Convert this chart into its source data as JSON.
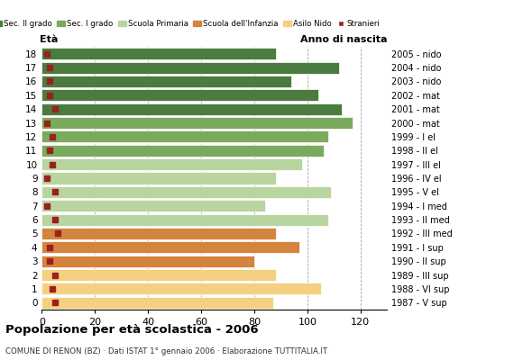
{
  "ages": [
    18,
    17,
    16,
    15,
    14,
    13,
    12,
    11,
    10,
    9,
    8,
    7,
    6,
    5,
    4,
    3,
    2,
    1,
    0
  ],
  "bar_values": [
    88,
    112,
    94,
    104,
    113,
    117,
    108,
    106,
    98,
    88,
    109,
    84,
    108,
    88,
    97,
    80,
    88,
    105,
    87
  ],
  "stranieri_values": [
    2,
    3,
    3,
    3,
    5,
    2,
    4,
    3,
    4,
    2,
    5,
    2,
    5,
    6,
    3,
    3,
    5,
    4,
    5
  ],
  "anno_nascita": [
    "1987 - V sup",
    "1988 - VI sup",
    "1989 - III sup",
    "1990 - II sup",
    "1991 - I sup",
    "1992 - III med",
    "1993 - II med",
    "1994 - I med",
    "1995 - V el",
    "1996 - IV el",
    "1997 - III el",
    "1998 - II el",
    "1999 - I el",
    "2000 - mat",
    "2001 - mat",
    "2002 - mat",
    "2003 - nido",
    "2004 - nido",
    "2005 - nido"
  ],
  "colors": {
    "sec_II": "#4a7c3f",
    "sec_I": "#7aaa5e",
    "primaria": "#b8d5a0",
    "infanzia": "#d4843e",
    "nido": "#f5d080",
    "stranieri": "#9b2020"
  },
  "title": "Popolazione per età scolastica - 2006",
  "subtitle": "COMUNE DI RENON (BZ) · Dati ISTAT 1° gennaio 2006 · Elaborazione TUTTITALIA.IT",
  "xlabel_age": "Età",
  "xlabel_anno": "Anno di nascita",
  "xlim": [
    0,
    130
  ],
  "xticks": [
    0,
    20,
    40,
    60,
    80,
    100,
    120
  ],
  "legend_labels": [
    "Sec. II grado",
    "Sec. I grado",
    "Scuola Primaria",
    "Scuola dell'Infanzia",
    "Asilo Nido",
    "Stranieri"
  ],
  "legend_colors": [
    "#4a7c3f",
    "#7aaa5e",
    "#b8d5a0",
    "#d4843e",
    "#f5d080",
    "#9b2020"
  ]
}
